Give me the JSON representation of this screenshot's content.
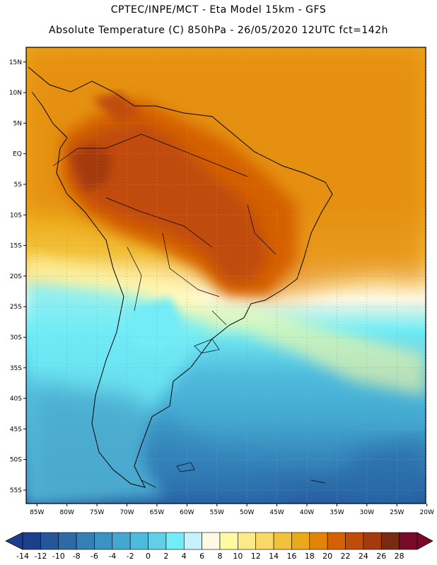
{
  "header": {
    "line1": "CPTEC/INPE/MCT -  Eta Model 15km - GFS",
    "line2": "Absolute Temperature (C) 850hPa - 26/05/2020 12UTC fct=142h"
  },
  "map": {
    "lat_labels": [
      "15N",
      "10N",
      "5N",
      "EQ",
      "5S",
      "10S",
      "15S",
      "20S",
      "25S",
      "30S",
      "35S",
      "40S",
      "45S",
      "50S",
      "55S"
    ],
    "lon_labels": [
      "85W",
      "80W",
      "75W",
      "70W",
      "65W",
      "60W",
      "55W",
      "50W",
      "45W",
      "40W",
      "35W",
      "30W",
      "25W",
      "20W"
    ],
    "lat_range": [
      17.4,
      -57.2
    ],
    "lon_range": [
      -86.8,
      -20.2
    ]
  },
  "colorbar": {
    "ticks": [
      "-14",
      "-12",
      "-10",
      "-8",
      "-6",
      "-4",
      "-2",
      "0",
      "2",
      "4",
      "6",
      "8",
      "10",
      "12",
      "14",
      "16",
      "18",
      "20",
      "22",
      "24",
      "26",
      "28"
    ],
    "colors": [
      "#1b3f8b",
      "#24569c",
      "#2c6aa8",
      "#337fb6",
      "#3a93c2",
      "#43a7cf",
      "#4fbbdc",
      "#5fd0e8",
      "#72ecf6",
      "#c6f2fb",
      "#fff8e3",
      "#fffaa2",
      "#fce98a",
      "#f9d866",
      "#f2c13a",
      "#eba818",
      "#e38408",
      "#d46103",
      "#c04c0a",
      "#a43a0d",
      "#7a2a12",
      "#7a0a2a"
    ],
    "under_color": "#1b3f8b",
    "over_color": "#7a0a2a"
  }
}
